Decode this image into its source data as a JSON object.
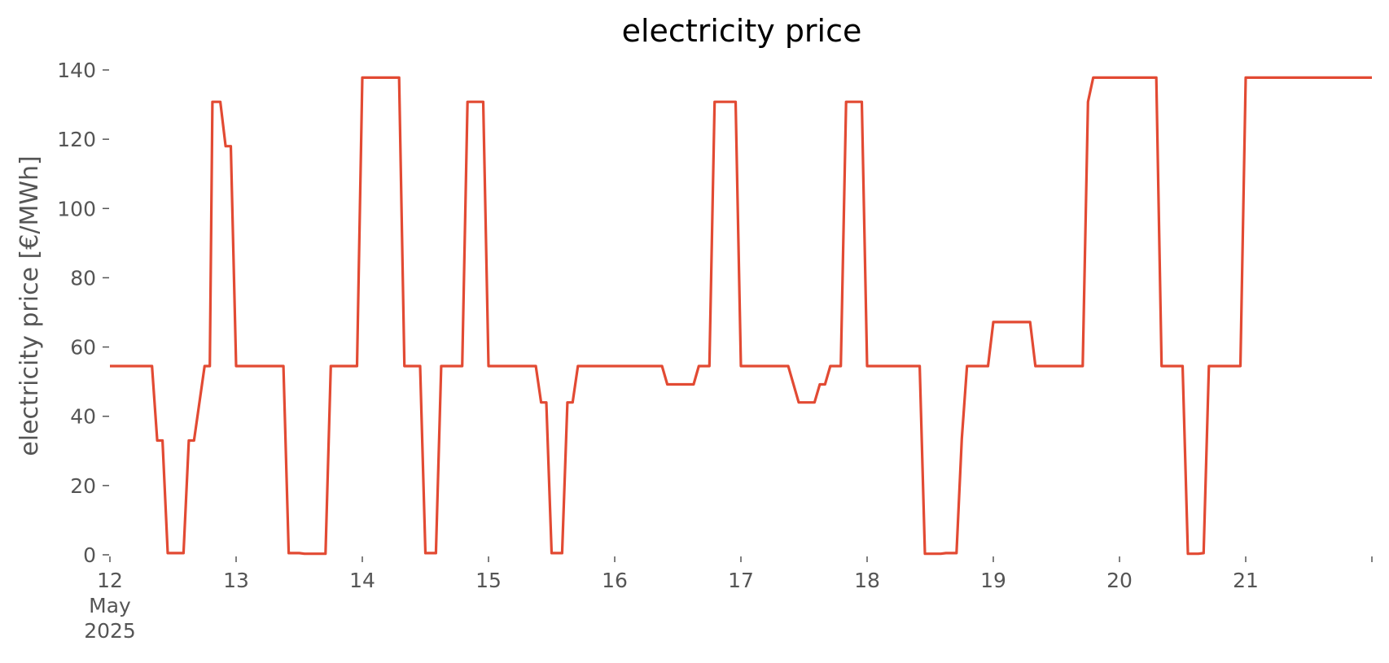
{
  "chart_data": {
    "type": "line",
    "title": "electricity price",
    "xlabel": "",
    "ylabel": "electricity price [€/MWh]",
    "x_axis": {
      "type": "date",
      "min": "2025-05-12T00:00",
      "max": "2025-05-22T00:00",
      "tick_labels": [
        {
          "x": "2025-05-12T00:00",
          "lines": [
            "12",
            "May",
            "2025"
          ]
        },
        {
          "x": "2025-05-13T00:00",
          "lines": [
            "13"
          ]
        },
        {
          "x": "2025-05-14T00:00",
          "lines": [
            "14"
          ]
        },
        {
          "x": "2025-05-15T00:00",
          "lines": [
            "15"
          ]
        },
        {
          "x": "2025-05-16T00:00",
          "lines": [
            "16"
          ]
        },
        {
          "x": "2025-05-17T00:00",
          "lines": [
            "17"
          ]
        },
        {
          "x": "2025-05-18T00:00",
          "lines": [
            "18"
          ]
        },
        {
          "x": "2025-05-19T00:00",
          "lines": [
            "19"
          ]
        },
        {
          "x": "2025-05-20T00:00",
          "lines": [
            "20"
          ]
        },
        {
          "x": "2025-05-21T00:00",
          "lines": [
            "21"
          ]
        },
        {
          "x": "2025-05-22T00:00",
          "lines": [
            ""
          ]
        }
      ]
    },
    "ylim": [
      0,
      140
    ],
    "yticks": [
      "0",
      "20",
      "40",
      "60",
      "80",
      "100",
      "120",
      "140"
    ],
    "grid": false,
    "legend": "none",
    "series": [
      {
        "color": "#e24a33",
        "points": [
          [
            "2025-05-12T00:00",
            54.5
          ],
          [
            "2025-05-12T08:00",
            54.5
          ],
          [
            "2025-05-12T09:00",
            33
          ],
          [
            "2025-05-12T10:00",
            33
          ],
          [
            "2025-05-12T11:00",
            0.5
          ],
          [
            "2025-05-12T14:00",
            0.5
          ],
          [
            "2025-05-12T15:00",
            33
          ],
          [
            "2025-05-12T16:00",
            33
          ],
          [
            "2025-05-12T18:00",
            54.5
          ],
          [
            "2025-05-12T19:00",
            54.5
          ],
          [
            "2025-05-12T19:30",
            130.8
          ],
          [
            "2025-05-12T21:00",
            130.8
          ],
          [
            "2025-05-12T22:00",
            118
          ],
          [
            "2025-05-12T23:00",
            118
          ],
          [
            "2025-05-13T00:00",
            54.5
          ],
          [
            "2025-05-13T09:00",
            54.5
          ],
          [
            "2025-05-13T10:00",
            0.5
          ],
          [
            "2025-05-13T12:00",
            0.5
          ],
          [
            "2025-05-13T13:00",
            0.3
          ],
          [
            "2025-05-13T17:00",
            0.3
          ],
          [
            "2025-05-13T18:00",
            54.5
          ],
          [
            "2025-05-13T23:00",
            54.5
          ],
          [
            "2025-05-14T00:00",
            137.8
          ],
          [
            "2025-05-14T07:00",
            137.8
          ],
          [
            "2025-05-14T08:00",
            54.5
          ],
          [
            "2025-05-14T11:00",
            54.5
          ],
          [
            "2025-05-14T12:00",
            0.5
          ],
          [
            "2025-05-14T14:00",
            0.5
          ],
          [
            "2025-05-14T15:00",
            54.5
          ],
          [
            "2025-05-14T19:00",
            54.5
          ],
          [
            "2025-05-14T20:00",
            130.8
          ],
          [
            "2025-05-14T23:00",
            130.8
          ],
          [
            "2025-05-15T00:00",
            54.5
          ],
          [
            "2025-05-15T09:00",
            54.5
          ],
          [
            "2025-05-15T10:00",
            44
          ],
          [
            "2025-05-15T11:00",
            44
          ],
          [
            "2025-05-15T12:00",
            0.5
          ],
          [
            "2025-05-15T14:00",
            0.5
          ],
          [
            "2025-05-15T15:00",
            44
          ],
          [
            "2025-05-15T16:00",
            44
          ],
          [
            "2025-05-15T17:00",
            54.5
          ],
          [
            "2025-05-16T09:00",
            54.5
          ],
          [
            "2025-05-16T10:00",
            49.2
          ],
          [
            "2025-05-16T15:00",
            49.2
          ],
          [
            "2025-05-16T16:00",
            54.5
          ],
          [
            "2025-05-16T18:00",
            54.5
          ],
          [
            "2025-05-16T19:00",
            130.8
          ],
          [
            "2025-05-16T23:00",
            130.8
          ],
          [
            "2025-05-17T00:00",
            54.5
          ],
          [
            "2025-05-17T09:00",
            54.5
          ],
          [
            "2025-05-17T11:00",
            44
          ],
          [
            "2025-05-17T14:00",
            44
          ],
          [
            "2025-05-17T15:00",
            49.2
          ],
          [
            "2025-05-17T16:00",
            49.2
          ],
          [
            "2025-05-17T17:00",
            54.5
          ],
          [
            "2025-05-17T19:00",
            54.5
          ],
          [
            "2025-05-17T20:00",
            130.8
          ],
          [
            "2025-05-17T23:00",
            130.8
          ],
          [
            "2025-05-18T00:00",
            54.5
          ],
          [
            "2025-05-18T10:00",
            54.5
          ],
          [
            "2025-05-18T11:00",
            0.3
          ],
          [
            "2025-05-18T14:00",
            0.3
          ],
          [
            "2025-05-18T15:00",
            0.5
          ],
          [
            "2025-05-18T17:00",
            0.5
          ],
          [
            "2025-05-18T18:00",
            33.5
          ],
          [
            "2025-05-18T19:00",
            54.5
          ],
          [
            "2025-05-18T23:00",
            54.5
          ],
          [
            "2025-05-19T00:00",
            67.2
          ],
          [
            "2025-05-19T07:00",
            67.2
          ],
          [
            "2025-05-19T08:00",
            54.5
          ],
          [
            "2025-05-19T17:00",
            54.5
          ],
          [
            "2025-05-19T18:00",
            130.8
          ],
          [
            "2025-05-19T19:00",
            137.8
          ],
          [
            "2025-05-20T07:00",
            137.8
          ],
          [
            "2025-05-20T08:00",
            54.5
          ],
          [
            "2025-05-20T12:00",
            54.5
          ],
          [
            "2025-05-20T13:00",
            0.3
          ],
          [
            "2025-05-20T15:00",
            0.3
          ],
          [
            "2025-05-20T16:00",
            0.5
          ],
          [
            "2025-05-20T17:00",
            54.5
          ],
          [
            "2025-05-20T23:00",
            54.5
          ],
          [
            "2025-05-21T00:00",
            137.8
          ],
          [
            "2025-05-22T00:00",
            137.8
          ]
        ]
      }
    ]
  }
}
